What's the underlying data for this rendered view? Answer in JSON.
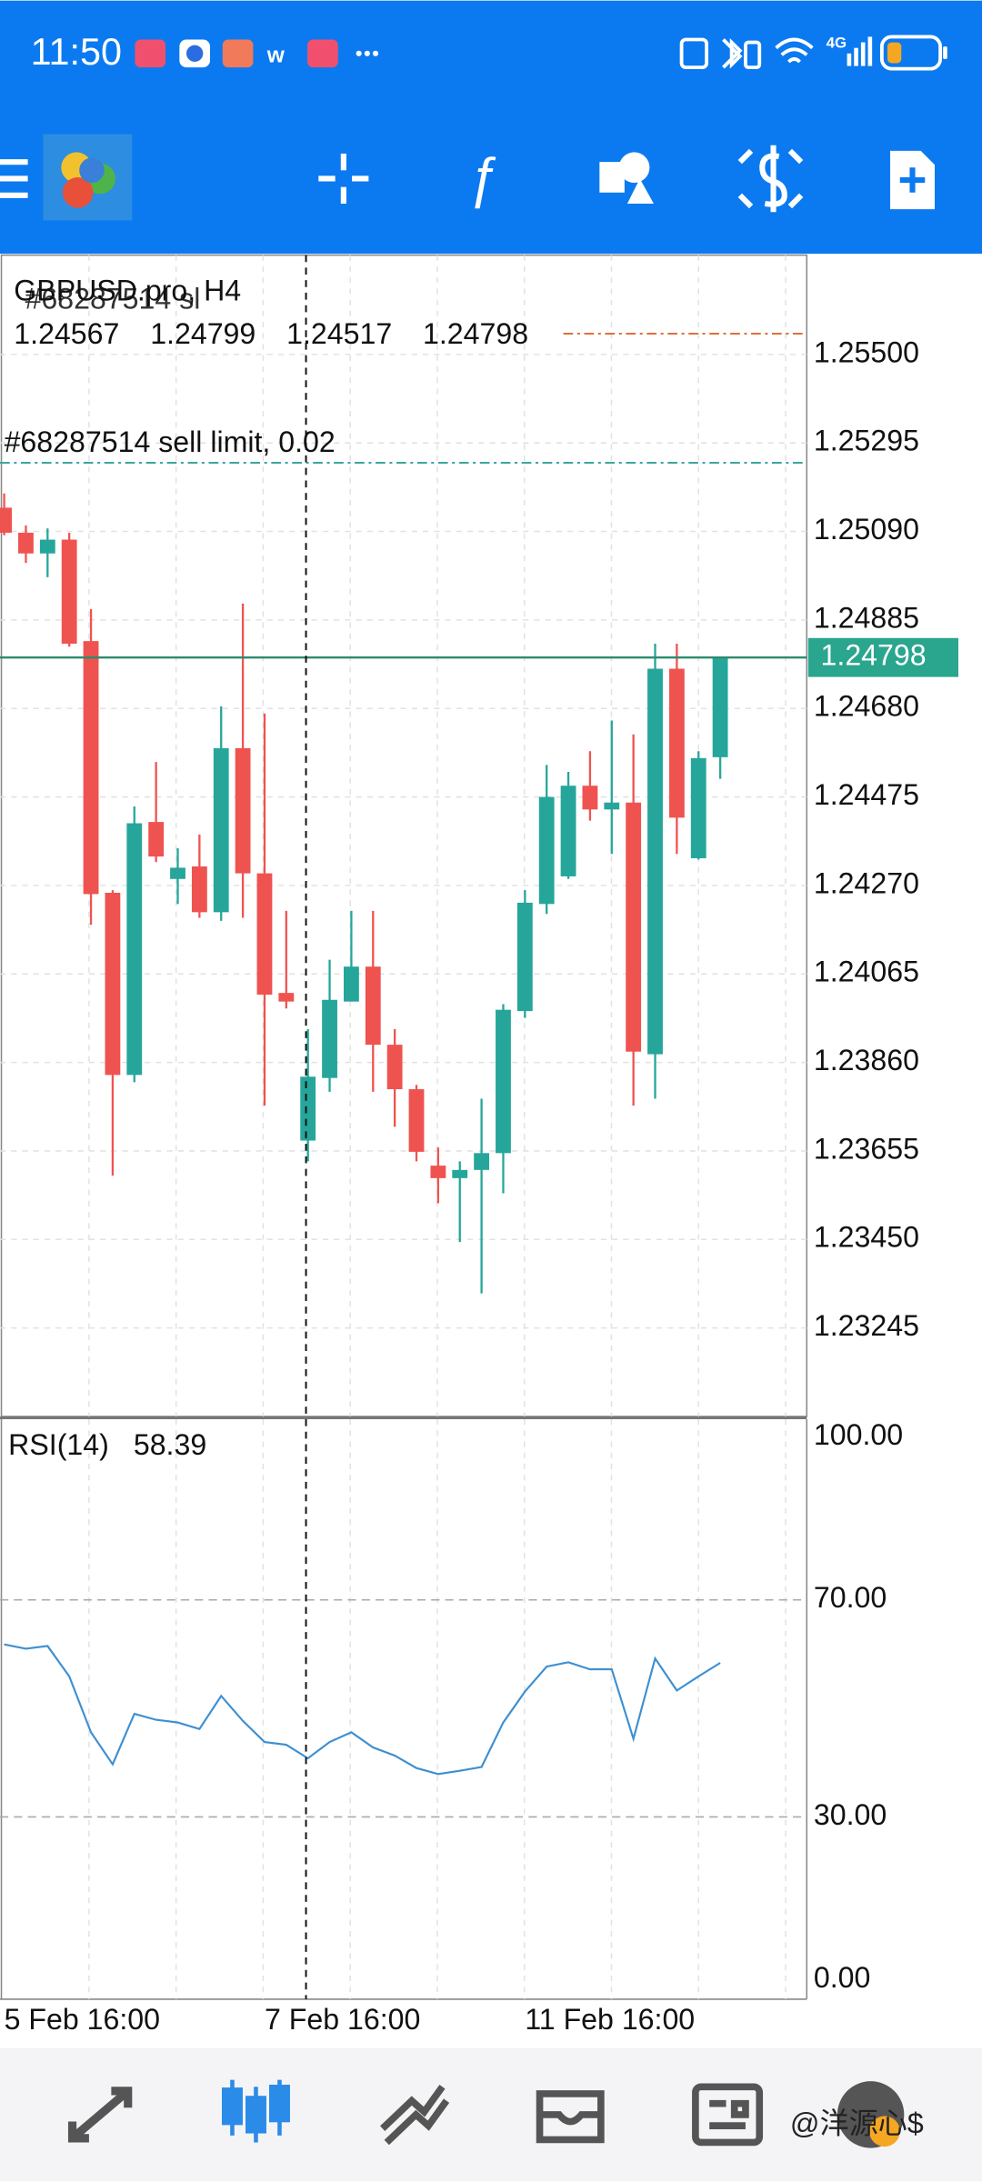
{
  "status_bar": {
    "time": "11:50",
    "network": "4G"
  },
  "chart_data": [
    {
      "type": "candlestick",
      "title": "GBPUSD.pro, H4",
      "categories": [
        "5 Feb 16:00",
        null,
        null,
        null,
        null,
        null,
        null,
        null,
        null,
        null,
        null,
        null,
        "7 Feb 16:00",
        null,
        null,
        null,
        null,
        null,
        null,
        null,
        null,
        null,
        null,
        null,
        "11 Feb 16:00",
        null,
        null,
        null,
        null,
        null,
        null,
        null,
        null,
        null
      ],
      "open": [
        1.25145,
        1.25087,
        1.25039,
        1.25071,
        1.24836,
        1.24253,
        1.23831,
        1.24417,
        1.24285,
        1.24314,
        1.24208,
        1.24588,
        1.24298,
        1.24021,
        1.23679,
        1.23824,
        1.24001,
        1.24082,
        1.23901,
        1.23798,
        1.23621,
        1.23592,
        1.23611,
        1.2365,
        1.23979,
        1.24227,
        1.24291,
        1.24501,
        1.24446,
        1.24462,
        1.23879,
        1.24772,
        1.24333,
        1.24567
      ],
      "high": [
        1.25178,
        1.25104,
        1.25097,
        1.25087,
        1.2491,
        1.24259,
        1.24453,
        1.24556,
        1.24356,
        1.24388,
        1.24685,
        1.24923,
        1.24668,
        1.24211,
        1.23937,
        1.24098,
        1.24211,
        1.24211,
        1.23937,
        1.23808,
        1.23663,
        1.23631,
        1.23776,
        1.23995,
        1.24259,
        1.24549,
        1.24533,
        1.24581,
        1.24652,
        1.2462,
        1.2483,
        1.2483,
        1.24581,
        1.24799
      ],
      "low": [
        1.25081,
        1.25017,
        1.24984,
        1.24823,
        1.24179,
        1.23598,
        1.23814,
        1.24324,
        1.24227,
        1.24195,
        1.24188,
        1.24195,
        1.2376,
        1.23985,
        1.23631,
        1.23792,
        1.24001,
        1.23792,
        1.23711,
        1.23631,
        1.23534,
        1.23444,
        1.23325,
        1.23557,
        1.23963,
        1.24204,
        1.24285,
        1.2442,
        1.24343,
        1.2376,
        1.23776,
        1.24343,
        1.2433,
        1.24517
      ],
      "close": [
        1.25087,
        1.25039,
        1.25071,
        1.2483,
        1.2425,
        1.23831,
        1.24414,
        1.24337,
        1.24311,
        1.24208,
        1.24588,
        1.24298,
        1.24017,
        1.24001,
        1.23827,
        1.24005,
        1.24082,
        1.23901,
        1.23798,
        1.23653,
        1.23592,
        1.23611,
        1.2365,
        1.23982,
        1.2423,
        1.24475,
        1.24501,
        1.24446,
        1.24462,
        1.23885,
        1.24772,
        1.24427,
        1.24565,
        1.24798
      ],
      "up_color": "#26a69a",
      "down_color": "#ef5350",
      "ylim": [
        1.2304,
        1.2573
      ],
      "yticks": [
        {
          "value": 1.255,
          "label": "1.25500"
        },
        1.25295,
        {
          "value": 1.2509,
          "label": "1.25090"
        },
        1.24885,
        {
          "value": 1.2468,
          "label": "1.24680"
        },
        1.24475,
        {
          "value": 1.2427,
          "label": "1.24270"
        },
        1.24065,
        {
          "value": 1.2386,
          "label": "1.23860"
        },
        1.23655,
        {
          "value": 1.2345,
          "label": "1.23450"
        },
        1.23245
      ],
      "grid": true,
      "annotations": [
        {
          "text": "#68287514 sell limit, 0.02",
          "value": 1.25249,
          "color": "#3aa6a0"
        },
        {
          "text": "#68287514 sl",
          "value": 1.25548,
          "color": "#e0703a"
        }
      ]
    },
    {
      "type": "line",
      "series": [
        {
          "name": "RSI(14)",
          "color": "#3d8fd1",
          "values": [
            61.8,
            61.0,
            61.5,
            55.9,
            45.6,
            39.7,
            49.0,
            47.9,
            47.4,
            46.2,
            52.3,
            47.7,
            43.8,
            43.3,
            40.8,
            43.8,
            45.6,
            42.8,
            41.3,
            39.0,
            37.9,
            38.5,
            39.2,
            47.4,
            53.1,
            57.7,
            58.5,
            57.2,
            57.2,
            44.4,
            59.2,
            53.3,
            55.9,
            58.39
          ]
        }
      ],
      "ylim": [
        -3.6,
        103.3
      ],
      "yticks": [
        {
          "value": 100,
          "label": "100.00"
        },
        {
          "value": 70,
          "label": "70.00"
        },
        {
          "value": 30,
          "label": "30.00"
        },
        {
          "value": 0,
          "label": "0.00"
        }
      ],
      "levels": [
        70,
        30
      ]
    }
  ],
  "watermark": "@洋源心$"
}
